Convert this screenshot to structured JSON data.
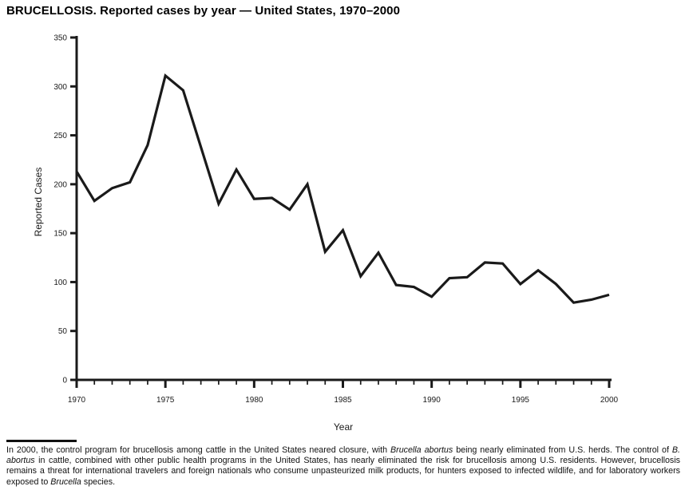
{
  "chart_data": {
    "type": "line",
    "title": "BRUCELLOSIS. Reported cases by year — United States, 1970–2000",
    "x": [
      1970,
      1971,
      1972,
      1973,
      1974,
      1975,
      1976,
      1977,
      1978,
      1979,
      1980,
      1981,
      1982,
      1983,
      1984,
      1985,
      1986,
      1987,
      1988,
      1989,
      1990,
      1991,
      1992,
      1993,
      1994,
      1995,
      1996,
      1997,
      1998,
      1999,
      2000
    ],
    "values": [
      213,
      183,
      196,
      202,
      240,
      311,
      296,
      238,
      180,
      215,
      185,
      186,
      174,
      200,
      131,
      153,
      106,
      130,
      97,
      95,
      85,
      104,
      105,
      120,
      119,
      98,
      112,
      98,
      79,
      82,
      87
    ],
    "xlabel": "Year",
    "ylabel": "Reported Cases",
    "ylim": [
      0,
      350
    ],
    "yticks": [
      0,
      50,
      100,
      150,
      200,
      250,
      300,
      350
    ],
    "xtick_labels": [
      1970,
      1975,
      1980,
      1985,
      1990,
      1995,
      2000
    ],
    "x_minor_tick_interval": 1,
    "grid": false,
    "legend": "none",
    "line_color": "#1a1a1a",
    "axis_color": "#1a1a1a"
  },
  "footnote": {
    "segments": [
      {
        "text": "In 2000, the control program for brucellosis among cattle in the United States neared closure, with ",
        "italic": false
      },
      {
        "text": "Brucella abortus",
        "italic": true
      },
      {
        "text": "  being nearly eliminated from U.S. herds. The control of ",
        "italic": false
      },
      {
        "text": "B. abortus",
        "italic": true
      },
      {
        "text": " in cattle, combined with other public health programs in the United States, has nearly eliminated the risk for brucellosis among U.S. residents. However, brucellosis remains a threat for international travelers and foreign nationals who consume unpasteurized milk products, for hunters exposed to infected wildlife, and for laboratory workers exposed to ",
        "italic": false
      },
      {
        "text": "Brucella",
        "italic": true
      },
      {
        "text": " species.",
        "italic": false
      }
    ]
  }
}
